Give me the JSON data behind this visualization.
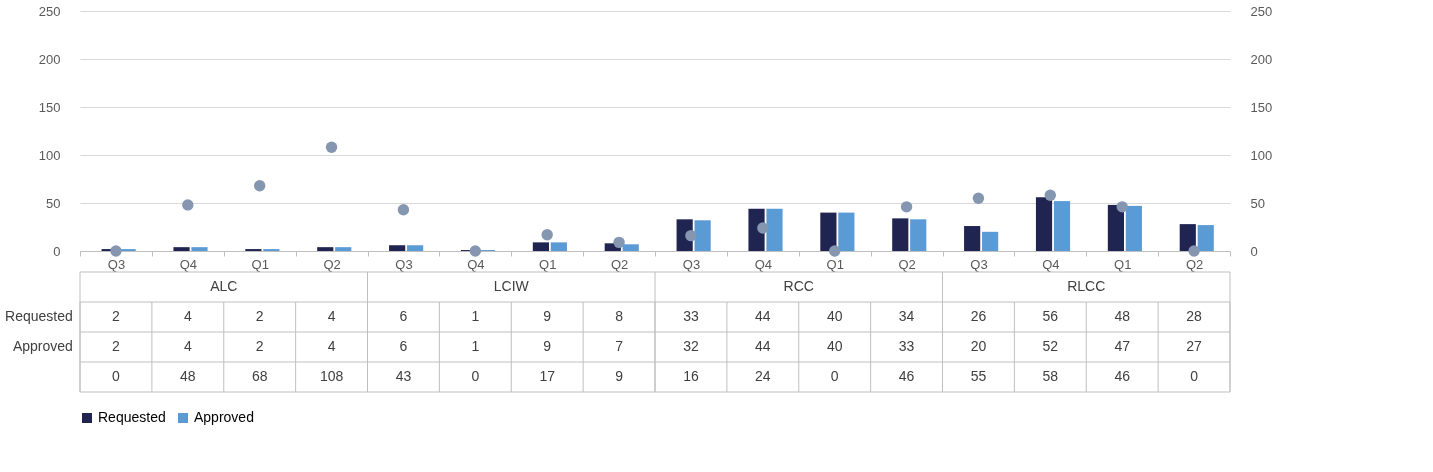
{
  "chart_data": {
    "type": "bar",
    "categories": [
      "Q3",
      "Q4",
      "Q1",
      "Q2",
      "Q3",
      "Q4",
      "Q1",
      "Q2",
      "Q3",
      "Q4",
      "Q1",
      "Q2",
      "Q3",
      "Q4",
      "Q1",
      "Q2"
    ],
    "annotations": [
      "ALC",
      "LCIW",
      "RCC",
      "RLCC"
    ],
    "series": [
      {
        "name": "Requested",
        "color": "#1f2451",
        "values": [
          2,
          4,
          2,
          4,
          6,
          1,
          9,
          8,
          33,
          44,
          40,
          34,
          26,
          56,
          48,
          28
        ]
      },
      {
        "name": "Approved",
        "color": "#5b9bd5",
        "values": [
          2,
          4,
          2,
          4,
          6,
          1,
          9,
          7,
          32,
          44,
          40,
          33,
          20,
          52,
          47,
          27
        ]
      },
      {
        "type": "scatter",
        "axis": "y2",
        "color": "#8496b0",
        "values": [
          0,
          48,
          68,
          108,
          43,
          0,
          17,
          9,
          16,
          24,
          0,
          46,
          55,
          58,
          46,
          0
        ]
      }
    ],
    "ylim": [
      0,
      250
    ],
    "yticks": [
      0,
      50,
      100,
      150,
      200,
      250
    ],
    "y2lim": [
      0,
      250
    ],
    "y2ticks": [
      0,
      50,
      100,
      150,
      200,
      250
    ],
    "grid": "y",
    "legend": "bottom",
    "marker": "circle",
    "data_labels": true
  }
}
